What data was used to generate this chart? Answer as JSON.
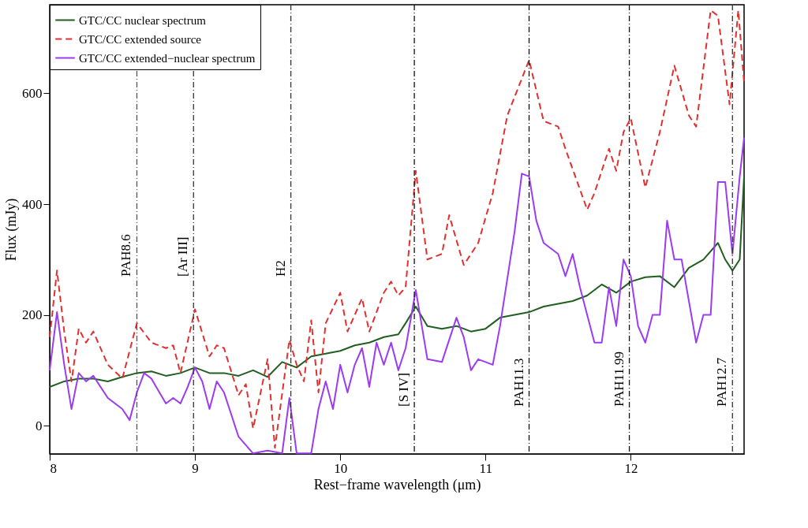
{
  "chart_data": {
    "type": "line",
    "xlabel": "Rest−frame wavelength (μm)",
    "ylabel": "Flux (mJy)",
    "xlim": [
      8,
      12.78
    ],
    "ylim": [
      -51,
      760
    ],
    "xticks": [
      8,
      9,
      10,
      11,
      12
    ],
    "yticks": [
      0,
      200,
      400,
      600
    ],
    "grid": false,
    "legend": "top left",
    "series": [
      {
        "name": "GTC/CC nuclear spectrum",
        "color": "#1f5f1f",
        "line_style": "solid",
        "x": [
          8.0,
          8.1,
          8.2,
          8.3,
          8.4,
          8.5,
          8.6,
          8.7,
          8.8,
          8.9,
          9.0,
          9.1,
          9.2,
          9.3,
          9.4,
          9.5,
          9.6,
          9.7,
          9.8,
          9.9,
          10.0,
          10.1,
          10.2,
          10.3,
          10.4,
          10.45,
          10.52,
          10.6,
          10.7,
          10.8,
          10.9,
          11.0,
          11.1,
          11.2,
          11.3,
          11.4,
          11.5,
          11.6,
          11.7,
          11.8,
          11.9,
          12.0,
          12.1,
          12.2,
          12.3,
          12.4,
          12.5,
          12.6,
          12.65,
          12.7,
          12.75,
          12.78
        ],
        "values": [
          70,
          80,
          85,
          85,
          80,
          88,
          95,
          98,
          90,
          95,
          105,
          95,
          95,
          90,
          100,
          88,
          115,
          105,
          125,
          130,
          135,
          145,
          150,
          160,
          165,
          185,
          215,
          180,
          175,
          180,
          170,
          175,
          195,
          200,
          205,
          215,
          220,
          225,
          235,
          255,
          240,
          260,
          268,
          270,
          250,
          285,
          300,
          330,
          300,
          280,
          300,
          450
        ]
      },
      {
        "name": "GTC/CC extended source",
        "color": "#e03030",
        "line_style": "dashed",
        "x": [
          8.0,
          8.05,
          8.1,
          8.15,
          8.2,
          8.25,
          8.3,
          8.4,
          8.5,
          8.6,
          8.7,
          8.8,
          8.85,
          8.9,
          9.0,
          9.1,
          9.15,
          9.2,
          9.3,
          9.35,
          9.4,
          9.5,
          9.55,
          9.65,
          9.7,
          9.75,
          9.8,
          9.85,
          9.9,
          10.0,
          10.05,
          10.15,
          10.2,
          10.3,
          10.35,
          10.4,
          10.45,
          10.52,
          10.6,
          10.7,
          10.75,
          10.85,
          10.95,
          11.05,
          11.15,
          11.3,
          11.4,
          11.5,
          11.55,
          11.7,
          11.75,
          11.85,
          11.9,
          11.95,
          12.0,
          12.1,
          12.2,
          12.3,
          12.4,
          12.45,
          12.55,
          12.6,
          12.68,
          12.74,
          12.78
        ],
        "values": [
          160,
          280,
          170,
          80,
          175,
          150,
          170,
          110,
          85,
          185,
          150,
          140,
          145,
          95,
          210,
          125,
          145,
          140,
          55,
          75,
          -5,
          120,
          -40,
          155,
          110,
          80,
          190,
          60,
          185,
          240,
          170,
          230,
          170,
          240,
          260,
          235,
          250,
          460,
          300,
          310,
          380,
          290,
          330,
          420,
          560,
          660,
          550,
          540,
          500,
          390,
          420,
          500,
          460,
          530,
          555,
          430,
          530,
          650,
          560,
          540,
          750,
          740,
          580,
          750,
          620
        ]
      },
      {
        "name": "GTC/CC extended−nuclear spectrum",
        "color": "#9b3cf0",
        "line_style": "solid",
        "x": [
          8.0,
          8.05,
          8.1,
          8.15,
          8.2,
          8.25,
          8.3,
          8.4,
          8.5,
          8.55,
          8.6,
          8.65,
          8.7,
          8.8,
          8.85,
          8.9,
          8.95,
          9.0,
          9.05,
          9.1,
          9.15,
          9.2,
          9.3,
          9.4,
          9.5,
          9.6,
          9.65,
          9.7,
          9.8,
          9.85,
          9.9,
          9.95,
          10.0,
          10.05,
          10.1,
          10.15,
          10.2,
          10.25,
          10.3,
          10.35,
          10.4,
          10.45,
          10.52,
          10.6,
          10.7,
          10.8,
          10.85,
          10.9,
          10.95,
          11.05,
          11.1,
          11.2,
          11.25,
          11.3,
          11.35,
          11.4,
          11.5,
          11.55,
          11.6,
          11.65,
          11.75,
          11.8,
          11.85,
          11.9,
          11.95,
          12.0,
          12.05,
          12.1,
          12.15,
          12.2,
          12.25,
          12.3,
          12.35,
          12.45,
          12.5,
          12.55,
          12.6,
          12.65,
          12.7,
          12.75,
          12.78
        ],
        "values": [
          100,
          205,
          110,
          30,
          95,
          80,
          90,
          50,
          30,
          10,
          60,
          95,
          85,
          40,
          50,
          40,
          70,
          105,
          80,
          30,
          80,
          60,
          -20,
          -50,
          -45,
          -50,
          50,
          -50,
          -50,
          30,
          80,
          30,
          110,
          60,
          110,
          140,
          70,
          150,
          110,
          150,
          100,
          140,
          245,
          120,
          115,
          195,
          160,
          100,
          120,
          110,
          180,
          350,
          455,
          450,
          370,
          330,
          310,
          270,
          310,
          250,
          150,
          150,
          250,
          180,
          300,
          270,
          180,
          150,
          200,
          200,
          370,
          300,
          300,
          150,
          200,
          200,
          440,
          440,
          310,
          450,
          520
        ]
      }
    ],
    "ref_lines": [
      {
        "axis": "x",
        "value": 8.6,
        "label": "PAH8.6",
        "color": "#555555",
        "line_style": "dashed"
      },
      {
        "axis": "x",
        "value": 8.99,
        "label": "[Ar III]",
        "color": "#333333",
        "line_style": "dashed"
      },
      {
        "axis": "x",
        "value": 9.66,
        "label": "H2",
        "color": "#333333",
        "line_style": "dashed"
      },
      {
        "axis": "x",
        "value": 10.51,
        "label": "[S IV]",
        "color": "#111111",
        "line_style": "dashed"
      },
      {
        "axis": "x",
        "value": 11.3,
        "label": "PAH11.3",
        "color": "#111111",
        "line_style": "dashed"
      },
      {
        "axis": "x",
        "value": 11.99,
        "label": "PAH11.99",
        "color": "#111111",
        "line_style": "dashed"
      },
      {
        "axis": "x",
        "value": 12.7,
        "label": "PAH12.7",
        "color": "#333333",
        "line_style": "dashed"
      }
    ]
  }
}
